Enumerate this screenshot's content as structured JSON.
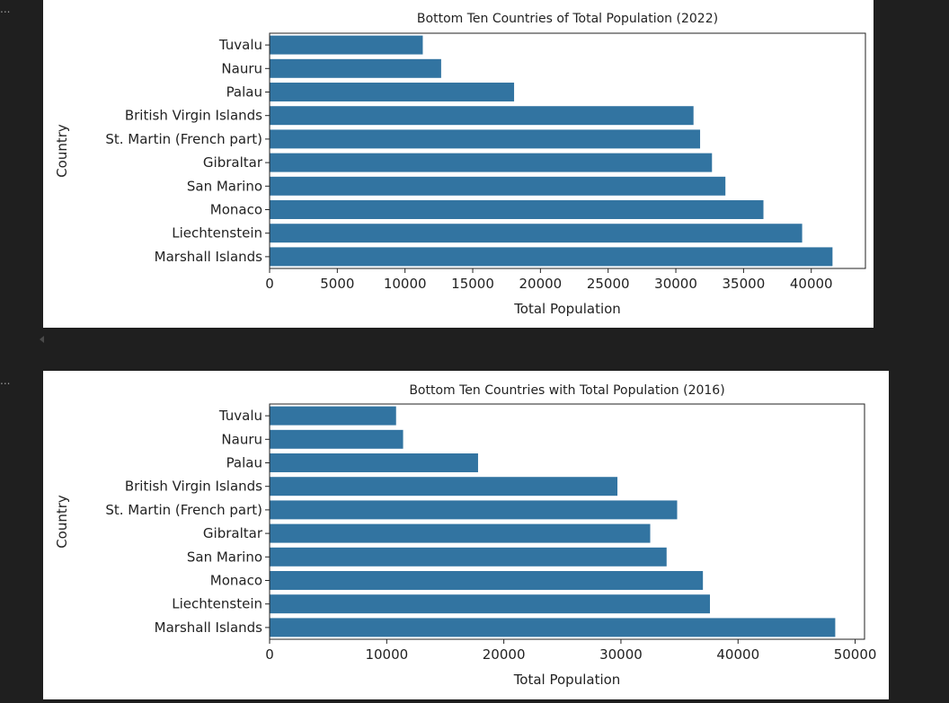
{
  "notebook": {
    "cell_markers": [
      "...",
      "..."
    ]
  },
  "chart_data": [
    {
      "type": "bar",
      "orientation": "horizontal",
      "title": "Bottom Ten Countries of Total Population (2022)",
      "xlabel": "Total Population",
      "ylabel": "Country",
      "categories": [
        "Tuvalu",
        "Nauru",
        "Palau",
        "British Virgin Islands",
        "St. Martin (French part)",
        "Gibraltar",
        "San Marino",
        "Monaco",
        "Liechtenstein",
        "Marshall Islands"
      ],
      "values": [
        11312,
        12668,
        18055,
        31305,
        31791,
        32669,
        33660,
        36469,
        39327,
        41569
      ],
      "xlim": [
        0,
        44000
      ],
      "xticks": [
        0,
        5000,
        10000,
        15000,
        20000,
        25000,
        30000,
        35000,
        40000
      ],
      "grid": false,
      "bar_color": "#3274a1"
    },
    {
      "type": "bar",
      "orientation": "horizontal",
      "title": "Bottom Ten Countries with Total Population (2016)",
      "xlabel": "Total Population",
      "ylabel": "Country",
      "categories": [
        "Tuvalu",
        "Nauru",
        "Palau",
        "British Virgin Islands",
        "St. Martin (French part)",
        "Gibraltar",
        "San Marino",
        "Monaco",
        "Liechtenstein",
        "Marshall Islands"
      ],
      "values": [
        10800,
        11400,
        17800,
        29700,
        34800,
        32500,
        33900,
        37000,
        37600,
        48300
      ],
      "xlim": [
        0,
        50800
      ],
      "xticks": [
        0,
        10000,
        20000,
        30000,
        40000,
        50000
      ],
      "grid": false,
      "bar_color": "#3274a1"
    }
  ]
}
